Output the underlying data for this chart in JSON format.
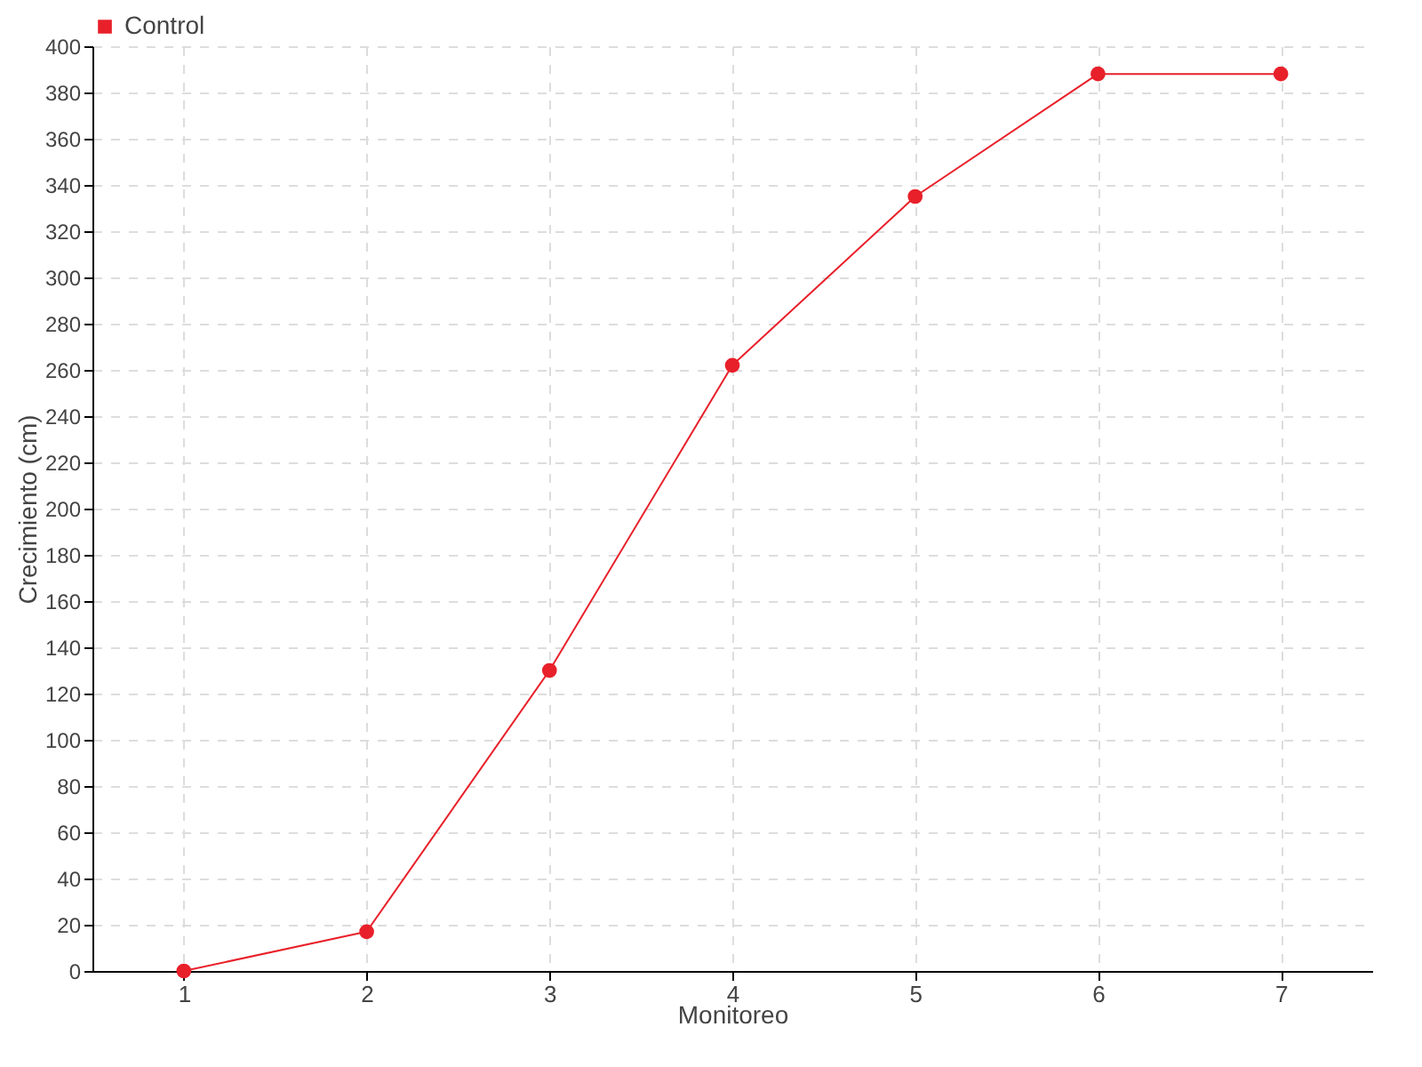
{
  "chart_data": {
    "type": "line",
    "xlabel": "Monitoreo",
    "ylabel": "Crecimiento (cm)",
    "categories": [
      "1",
      "2",
      "3",
      "4",
      "5",
      "6",
      "7"
    ],
    "series": [
      {
        "name": "Control",
        "color": "#e8202a",
        "values": [
          0,
          17,
          130,
          262,
          335,
          388,
          388
        ]
      }
    ],
    "ylim": [
      0,
      400
    ],
    "yticks": [
      0,
      20,
      40,
      60,
      80,
      100,
      120,
      140,
      160,
      180,
      200,
      220,
      240,
      260,
      280,
      300,
      320,
      340,
      360,
      380,
      400
    ],
    "grid": true,
    "legend": "top left",
    "marker": "circle",
    "line_style": "solid"
  }
}
